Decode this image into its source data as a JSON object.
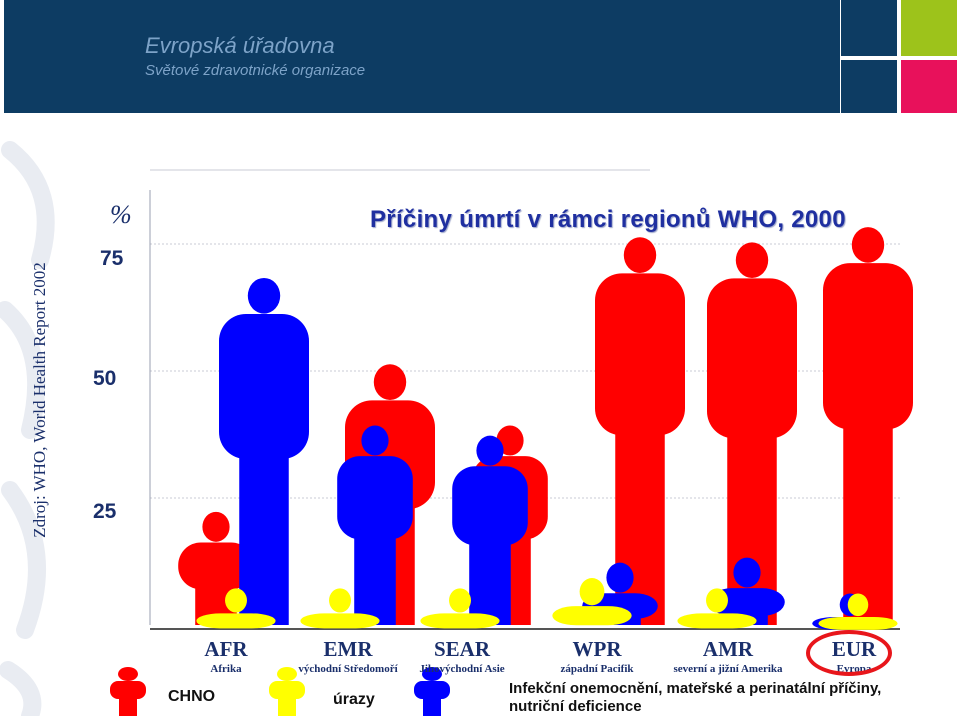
{
  "header": {
    "title": "Evropská úřadovna",
    "subtitle": "Světové zdravotnické organizace",
    "tile_colors": [
      "#0d3c63",
      "#9dc31b",
      "#e8115b",
      "#0d3c63",
      "#0d3c63",
      "#e8115b"
    ]
  },
  "source_note": "Zdroj: WHO, World Health Report 2002",
  "chart_data": {
    "type": "bar",
    "title": "Příčiny úmrtí v rámci regionů WHO, 2000",
    "ylabel": "%",
    "yticks": [
      "25",
      "50",
      "75"
    ],
    "ylim": [
      0,
      80
    ],
    "categories": [
      {
        "code": "AFR",
        "name": "Afrika"
      },
      {
        "code": "EMR",
        "name": "východní Středomoří"
      },
      {
        "code": "SEAR",
        "name": "Jihovýchodní  Asie"
      },
      {
        "code": "WPR",
        "name": "západní Pacifik"
      },
      {
        "code": "AMR",
        "name": "severní a jižní Amerika"
      },
      {
        "code": "EUR",
        "name": "Evropa"
      }
    ],
    "series": [
      {
        "name": "CHNO",
        "color": "#ff0000",
        "values": [
          22,
          51,
          39,
          76,
          75,
          78
        ]
      },
      {
        "name": "úrazy",
        "color": "#ffff00",
        "values": [
          7,
          7,
          7,
          9,
          7,
          6
        ]
      },
      {
        "name": "Infekční onemocnění, mateřské a perinatální příčiny, nutriční deficience",
        "color": "#0000ff",
        "values": [
          68,
          39,
          37,
          12,
          13,
          6
        ]
      }
    ],
    "highlight": "EUR",
    "grid": true
  },
  "legend": [
    {
      "label": "CHNO",
      "color": "#ff0000"
    },
    {
      "label": "úrazy",
      "color": "#ffff00"
    },
    {
      "label": "Infekční onemocnění, mateřské a perinatální příčiny,",
      "label2": "nutriční deficience",
      "color": "#0000ff"
    }
  ],
  "icons": [
    "who-logo-watermark-icon",
    "person-icon"
  ]
}
